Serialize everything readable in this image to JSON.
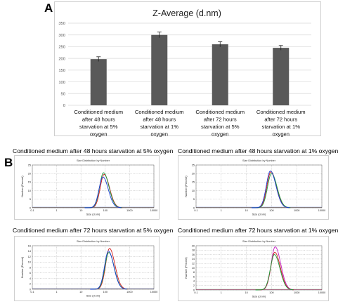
{
  "panel_labels": {
    "a": "A",
    "b": "B"
  },
  "chart_data": [
    {
      "type": "bar",
      "title": "Z-Average (d.nm)",
      "categories": [
        [
          "Conditioned medium",
          "after 48 hours",
          "starvation at 5%",
          "oxygen"
        ],
        [
          "Conditioned medium",
          "after 48 hours",
          "starvation at 1%",
          "oxygen"
        ],
        [
          "Conditioned medium",
          "after 72 hours",
          "starvation at 5%",
          "oxygen"
        ],
        [
          "Conditioned medium",
          "after 72 hours",
          "starvation at 1%",
          "oxygen"
        ]
      ],
      "values": [
        197,
        300,
        260,
        245
      ],
      "errors": [
        10,
        12,
        11,
        10
      ],
      "ylim": [
        0,
        350
      ],
      "yticks": [
        "0",
        "50",
        "100",
        "150",
        "200",
        "250",
        "300",
        "350"
      ],
      "grid": true,
      "bar_color": "#595959"
    },
    {
      "type": "line",
      "title": "Conditioned medium after 48 hours starvation at 5% oxygen",
      "subtitle": "Size Distribution by Number",
      "xlabel": "Size (d.nm)",
      "ylabel": "Number (Percent)",
      "xscale": "log",
      "xlim": [
        0.1,
        10000
      ],
      "xticks": [
        "0.1",
        "1",
        "10",
        "100",
        "1000",
        "10000"
      ],
      "ylim": [
        0,
        25
      ],
      "yticks": [
        "0",
        "5",
        "10",
        "15",
        "20",
        "25"
      ],
      "series": [
        {
          "color": "#d11a1a",
          "peak_x": 90,
          "peak_y": 19.5
        },
        {
          "color": "#1a9a3a",
          "peak_x": 85,
          "peak_y": 20.5
        },
        {
          "color": "#1a3ad1",
          "peak_x": 80,
          "peak_y": 18.0
        }
      ]
    },
    {
      "type": "line",
      "title": "Conditioned medium after 48 hours starvation at 1% oxygen",
      "subtitle": "Size Distribution by Number",
      "xlabel": "Size (d.nm)",
      "ylabel": "Number (Percent)",
      "xscale": "log",
      "xlim": [
        0.1,
        10000
      ],
      "xticks": [
        "0.1",
        "1",
        "10",
        "100",
        "1000",
        "10000"
      ],
      "ylim": [
        0,
        25
      ],
      "yticks": [
        "0",
        "5",
        "10",
        "15",
        "20",
        "25"
      ],
      "series": [
        {
          "color": "#d11a1a",
          "peak_x": 95,
          "peak_y": 21.0
        },
        {
          "color": "#1a9a3a",
          "peak_x": 100,
          "peak_y": 20.0
        },
        {
          "color": "#1a3ad1",
          "peak_x": 90,
          "peak_y": 21.5
        }
      ]
    },
    {
      "type": "line",
      "title": "Conditioned medium after 72 hours starvation at 5% oxygen",
      "subtitle": "Size Distribution by Number",
      "xlabel": "Size (d.nm)",
      "ylabel": "Number (Percent)",
      "xscale": "log",
      "xlim": [
        0.1,
        10000
      ],
      "xticks": [
        "0.1",
        "1",
        "10",
        "100",
        "1000",
        "10000"
      ],
      "ylim": [
        0,
        16
      ],
      "yticks": [
        "0",
        "2",
        "4",
        "6",
        "8",
        "10",
        "12",
        "14",
        "16"
      ],
      "series": [
        {
          "color": "#d11a1a",
          "peak_x": 150,
          "peak_y": 15.0
        },
        {
          "color": "#1a9a3a",
          "peak_x": 140,
          "peak_y": 13.5
        },
        {
          "color": "#1a3ad1",
          "peak_x": 135,
          "peak_y": 14.0
        }
      ]
    },
    {
      "type": "line",
      "title": "Conditioned medium after 72 hours starvation at 1% oxygen",
      "subtitle": "Size Distribution by Number",
      "xlabel": "Size (d.nm)",
      "ylabel": "Number (Percent)",
      "xscale": "log",
      "xlim": [
        0.1,
        10000
      ],
      "xticks": [
        "0.1",
        "1",
        "10",
        "100",
        "1000",
        "10000"
      ],
      "ylim": [
        0,
        20
      ],
      "yticks": [
        "0",
        "2",
        "4",
        "6",
        "8",
        "10",
        "12",
        "14",
        "16",
        "18",
        "20"
      ],
      "series": [
        {
          "color": "#c21ac2",
          "peak_x": 140,
          "peak_y": 19.5
        },
        {
          "color": "#d11a1a",
          "peak_x": 135,
          "peak_y": 17.0
        },
        {
          "color": "#1a9a3a",
          "peak_x": 130,
          "peak_y": 16.0
        }
      ]
    }
  ]
}
